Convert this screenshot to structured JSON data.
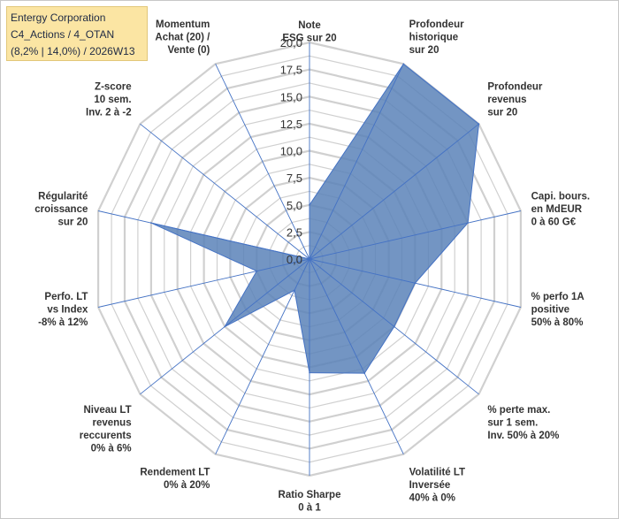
{
  "header": {
    "title_line1": "Entergy Corporation",
    "title_line2": "C4_Actions / 4_OTAN",
    "title_line3": "(8,2% | 14,0%) / 2026W13"
  },
  "chart_data": {
    "type": "radar",
    "title": "Entergy Corporation",
    "subtitle": "C4_Actions / 4_OTAN (8,2% | 14,0%) / 2026W13",
    "range": [
      0,
      20
    ],
    "ticks": [
      "0,0",
      "2,5",
      "5,0",
      "7,5",
      "10,0",
      "12,5",
      "15,0",
      "17,5",
      "20,0"
    ],
    "axes": [
      {
        "label": [
          "Note",
          "ESG sur 20"
        ],
        "value": 5.0
      },
      {
        "label": [
          "Profondeur",
          "historique",
          "sur 20"
        ],
        "value": 20.0
      },
      {
        "label": [
          "Profondeur",
          "revenus",
          "sur 20"
        ],
        "value": 20.0
      },
      {
        "label": [
          "Capi. bours.",
          "en MdEUR",
          "0 à 60 G€"
        ],
        "value": 15.0
      },
      {
        "label": [
          "% perfo 1A",
          "positive",
          "50% à 80%"
        ],
        "value": 10.0
      },
      {
        "label": [
          "% perte max.",
          "sur 1 sem.",
          "Inv. 50% à 20%"
        ],
        "value": 10.0
      },
      {
        "label": [
          "Volatilité LT",
          "Inversée",
          "40% à 0%"
        ],
        "value": 11.7
      },
      {
        "label": [
          "Ratio Sharpe",
          "0 à 1"
        ],
        "value": 10.5
      },
      {
        "label": [
          "Rendement LT",
          "0% à 20%"
        ],
        "value": 3.2
      },
      {
        "label": [
          "Niveau LT",
          "revenus",
          "reccurents",
          "0% à 6%"
        ],
        "value": 10.0
      },
      {
        "label": [
          "Perfo. LT",
          "vs Index",
          "-8% à 12%"
        ],
        "value": 5.0
      },
      {
        "label": [
          "Régularité",
          "croissance",
          "sur 20"
        ],
        "value": 15.0
      },
      {
        "label": [
          "Z-score",
          "10 sem.",
          "Inv. 2 à -2"
        ],
        "value": 0.0
      },
      {
        "label": [
          "Momentum",
          "Achat (20) /",
          "Vente (0)"
        ],
        "value": 0.0
      }
    ],
    "series": [
      {
        "values": [
          5.0,
          20.0,
          20.0,
          15.0,
          10.0,
          10.0,
          11.7,
          10.5,
          3.2,
          10.0,
          5.0,
          15.0,
          0.0,
          0.0
        ]
      }
    ],
    "colors": {
      "fill": "#5b82b8",
      "stroke": "#4472c4",
      "grid": "#d0d0d0",
      "spoke": "#4472c4"
    },
    "grid": true,
    "legend": "none"
  }
}
